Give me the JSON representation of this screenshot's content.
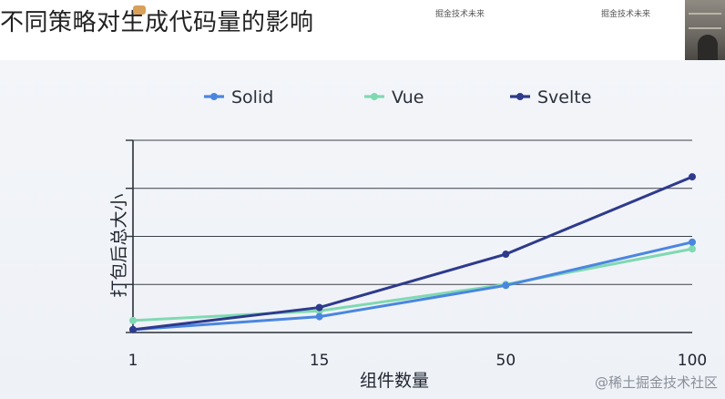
{
  "slide": {
    "title": "不同策略对生成代码量的影响",
    "watermarks": [
      "掘金技术未来",
      "掘金技术未来"
    ],
    "credit": "@稀土掘金技术社区"
  },
  "chart_data": {
    "type": "line",
    "title": "",
    "xlabel": "组件数量",
    "ylabel": "打包后总大小",
    "categories": [
      "1",
      "15",
      "50",
      "100"
    ],
    "ylim": [
      0,
      4
    ],
    "y_ticks": [
      0,
      1,
      2,
      3,
      4
    ],
    "y_tick_labels_shown": false,
    "grid": "horizontal",
    "legend_position": "top",
    "series": [
      {
        "name": "Solid",
        "color": "#4a86e0",
        "values": [
          0.06,
          0.33,
          0.98,
          1.88
        ]
      },
      {
        "name": "Vue",
        "color": "#7fd9b2",
        "values": [
          0.25,
          0.45,
          1.0,
          1.74
        ]
      },
      {
        "name": "Svelte",
        "color": "#2e3a8c",
        "values": [
          0.06,
          0.52,
          1.63,
          3.24
        ]
      }
    ]
  }
}
